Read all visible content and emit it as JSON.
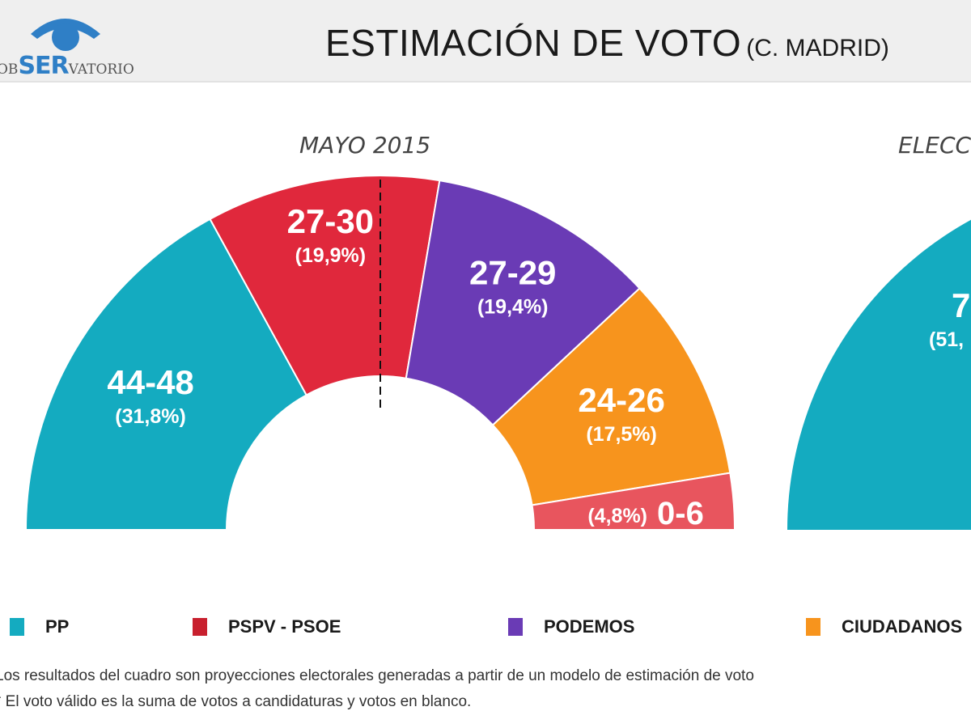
{
  "header": {
    "logo": "obSERvatorio",
    "title": "ESTIMACIÓN DE VOTO",
    "title_sub": "(C. MADRID)"
  },
  "colors": {
    "PP": "#14abc0",
    "PSOE": "#e0283c",
    "PODEMOS": "#6a3bb5",
    "CIUDADANOS": "#f7941d",
    "OTROS": "#e8555e"
  },
  "chart_data": [
    {
      "type": "pie",
      "variant": "hemicycle",
      "title": "MAYO 2015",
      "majority_line": true,
      "slices": [
        {
          "party": "PP",
          "seats": "44-48",
          "percent": 31.8,
          "pct_label": "(31,8%)",
          "color": "#14abc0"
        },
        {
          "party": "PSPV - PSOE",
          "seats": "27-30",
          "percent": 19.9,
          "pct_label": "(19,9%)",
          "color": "#e0283c"
        },
        {
          "party": "PODEMOS",
          "seats": "27-29",
          "percent": 19.4,
          "pct_label": "(19,4%)",
          "color": "#6a3bb5"
        },
        {
          "party": "CIUDADANOS",
          "seats": "24-26",
          "percent": 17.5,
          "pct_label": "(17,5%)",
          "color": "#f7941d"
        },
        {
          "party": "",
          "seats": "0-6",
          "percent": 4.8,
          "pct_label": "(4,8%)",
          "color": "#e8555e"
        }
      ]
    },
    {
      "type": "pie",
      "variant": "hemicycle",
      "title": "ELECC",
      "slices": [
        {
          "party": "PP",
          "seats": "7",
          "pct_label": "(51,",
          "color": "#14abc0"
        }
      ]
    }
  ],
  "legend": [
    {
      "label": "PP",
      "color": "#14abc0"
    },
    {
      "label": "PSPV - PSOE",
      "color": "#c8202e"
    },
    {
      "label": "PODEMOS",
      "color": "#6a3bb5"
    },
    {
      "label": "CIUDADANOS",
      "color": "#f7941d"
    }
  ],
  "notes": [
    "Los resultados del cuadro son proyecciones electorales generadas a partir de un modelo de estimación de voto",
    "* El voto válido es la suma de votos a candidaturas y votos en blanco."
  ]
}
